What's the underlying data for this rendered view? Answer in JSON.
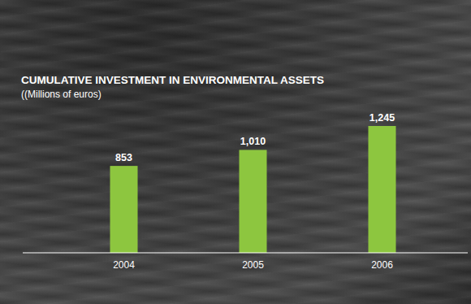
{
  "chart_data": {
    "type": "bar",
    "title": "CUMULATIVE INVESTMENT IN ENVIRONMENTAL ASSETS",
    "subtitle": "((Millions of euros)",
    "categories": [
      "2004",
      "2005",
      "2006"
    ],
    "values": [
      853,
      1010,
      1245
    ],
    "value_labels": [
      "853",
      "1,010",
      "1,245"
    ],
    "color": "#8dc63f",
    "ylim": [
      0,
      1245
    ],
    "data_labels": true,
    "tick_labels": "x",
    "grid": false
  }
}
